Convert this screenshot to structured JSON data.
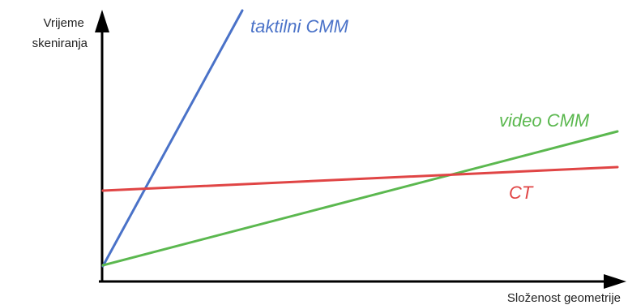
{
  "y_axis_label": [
    "Vrijeme",
    "skeniranja"
  ],
  "x_axis_label": "Složenost geometrije",
  "lines": {
    "tactile": {
      "label": "taktilni CMM",
      "color": "#4a72c8"
    },
    "video": {
      "label": "video CMM",
      "color": "#5bb84f"
    },
    "ct": {
      "label": "CT",
      "color": "#e04545"
    }
  },
  "axis_color": "#000000"
}
